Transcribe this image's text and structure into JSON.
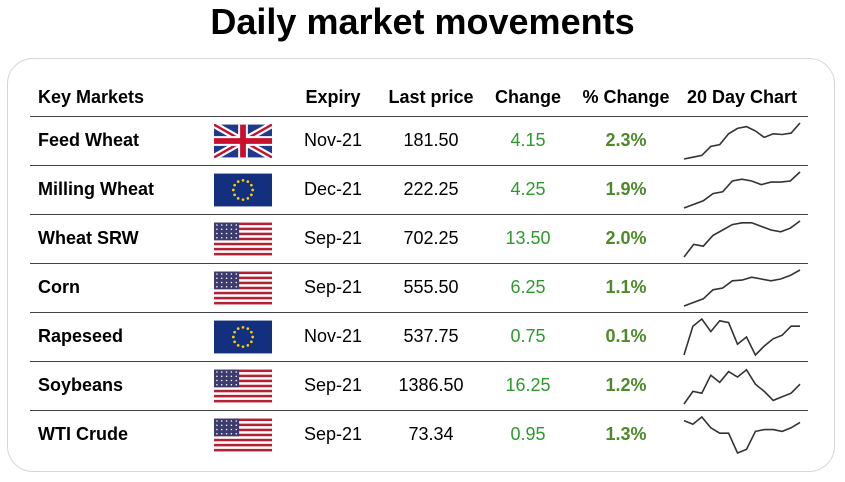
{
  "title": "Daily market movements",
  "headers": {
    "market": "Key Markets",
    "expiry": "Expiry",
    "last": "Last price",
    "change": "Change",
    "pct": "% Change",
    "chart": "20 Day Chart"
  },
  "colors": {
    "positive": "#2e9a2e",
    "pct": "#4c8a2a",
    "sparkline": "#333333"
  },
  "rows": [
    {
      "name": "Feed Wheat",
      "flag": "uk-flag-icon",
      "expiry": "Nov-21",
      "last": "181.50",
      "change": "4.15",
      "pct": "2.3%",
      "spark": [
        0.0,
        0.05,
        0.1,
        0.35,
        0.4,
        0.7,
        0.85,
        0.9,
        0.78,
        0.6,
        0.7,
        0.68,
        0.72,
        1.0
      ]
    },
    {
      "name": "Milling Wheat",
      "flag": "eu-flag-icon",
      "expiry": "Dec-21",
      "last": "222.25",
      "change": "4.25",
      "pct": "1.9%",
      "spark": [
        0.0,
        0.1,
        0.2,
        0.4,
        0.45,
        0.75,
        0.8,
        0.75,
        0.65,
        0.72,
        0.72,
        0.75,
        1.0
      ]
    },
    {
      "name": "Wheat SRW",
      "flag": "us-flag-icon",
      "expiry": "Sep-21",
      "last": "702.25",
      "change": "13.50",
      "pct": "2.0%",
      "spark": [
        0.0,
        0.35,
        0.3,
        0.6,
        0.75,
        0.9,
        0.95,
        0.95,
        0.85,
        0.75,
        0.7,
        0.8,
        1.0
      ]
    },
    {
      "name": "Corn",
      "flag": "us-flag-icon",
      "expiry": "Sep-21",
      "last": "555.50",
      "change": "6.25",
      "pct": "1.1%",
      "spark": [
        0.0,
        0.1,
        0.2,
        0.45,
        0.5,
        0.7,
        0.72,
        0.8,
        0.75,
        0.7,
        0.75,
        0.85,
        1.0
      ]
    },
    {
      "name": "Rapeseed",
      "flag": "eu-flag-icon",
      "expiry": "Nov-21",
      "last": "537.75",
      "change": "0.75",
      "pct": "0.1%",
      "spark": [
        0.0,
        0.8,
        1.0,
        0.65,
        0.95,
        0.9,
        0.3,
        0.5,
        0.0,
        0.25,
        0.45,
        0.55,
        0.8,
        0.8
      ]
    },
    {
      "name": "Soybeans",
      "flag": "us-flag-icon",
      "expiry": "Sep-21",
      "last": "1386.50",
      "change": "16.25",
      "pct": "1.2%",
      "spark": [
        0.0,
        0.35,
        0.3,
        0.8,
        0.6,
        0.9,
        0.75,
        0.95,
        0.55,
        0.35,
        0.1,
        0.2,
        0.3,
        0.55
      ]
    },
    {
      "name": "WTI Crude",
      "flag": "us-flag-icon",
      "expiry": "Sep-21",
      "last": "73.34",
      "change": "0.95",
      "pct": "1.3%",
      "spark": [
        0.9,
        0.8,
        1.0,
        0.7,
        0.55,
        0.55,
        0.0,
        0.1,
        0.6,
        0.65,
        0.65,
        0.6,
        0.7,
        0.85
      ]
    }
  ]
}
